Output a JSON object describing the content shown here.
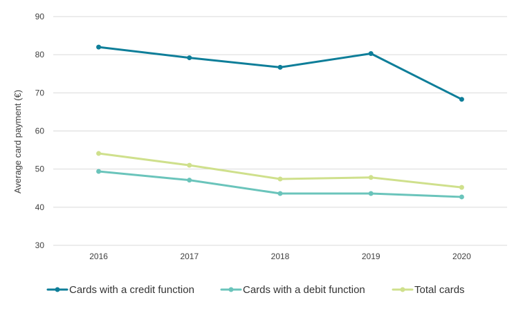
{
  "chart_data": {
    "type": "line",
    "title": "",
    "xlabel": "",
    "ylabel": "Average card payment (€)",
    "x": [
      "2016",
      "2017",
      "2018",
      "2019",
      "2020"
    ],
    "ylim": [
      30,
      90
    ],
    "yticks": [
      30,
      40,
      50,
      60,
      70,
      80,
      90
    ],
    "grid": true,
    "legend_position": "bottom",
    "series": [
      {
        "name": "Cards with a credit function",
        "values": [
          82.0,
          79.2,
          76.7,
          80.3,
          68.3
        ],
        "color": "#0e7e99"
      },
      {
        "name": "Cards with a debit function",
        "values": [
          49.4,
          47.1,
          43.6,
          43.6,
          42.7
        ],
        "color": "#6ac4bb"
      },
      {
        "name": "Total cards",
        "values": [
          54.1,
          51.0,
          47.4,
          47.8,
          45.2
        ],
        "color": "#cfe08c"
      }
    ]
  }
}
